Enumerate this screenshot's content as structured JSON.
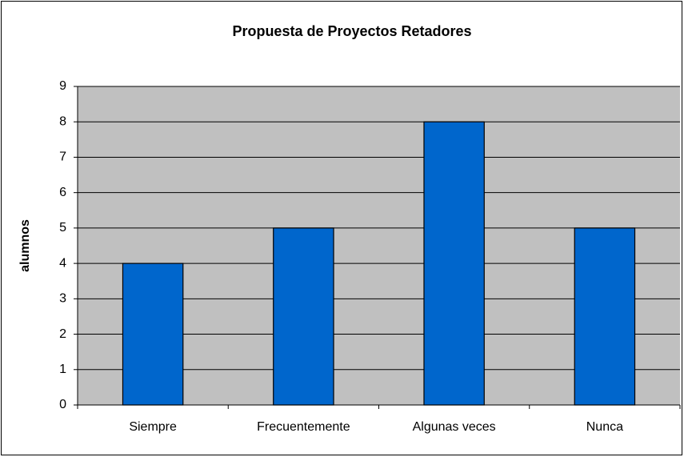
{
  "chart_data": {
    "type": "bar",
    "title": "Propuesta de Proyectos Retadores",
    "y_label": "alumnos",
    "categories": [
      "Siempre",
      "Frecuentemente",
      "Algunas veces",
      "Nunca"
    ],
    "values": [
      4,
      5,
      8,
      5
    ],
    "color": "#0066cc",
    "ylim": [
      0,
      9
    ],
    "yticks": [
      0,
      1,
      2,
      3,
      4,
      5,
      6,
      7,
      8,
      9
    ],
    "grid": true
  }
}
